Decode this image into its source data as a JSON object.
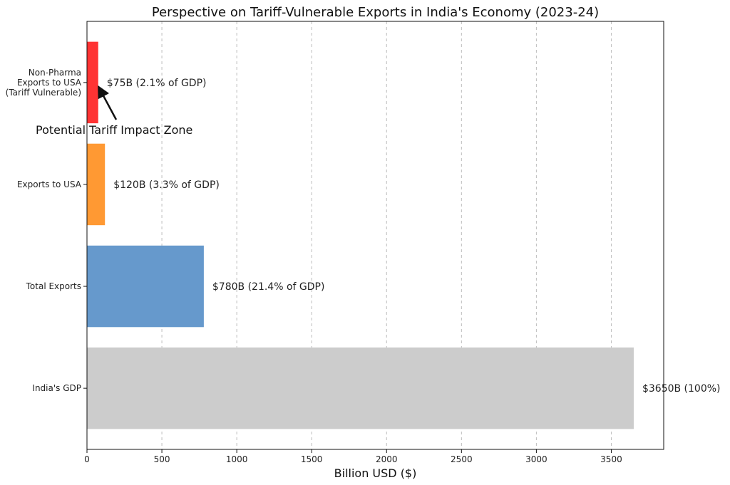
{
  "chart_data": {
    "type": "bar",
    "orientation": "horizontal",
    "title": "Perspective on Tariff-Vulnerable Exports in India's Economy (2023-24)",
    "xlabel": "Billion USD ($)",
    "ylabel": "",
    "xlim": [
      0,
      3850
    ],
    "x_ticks": [
      0,
      500,
      1000,
      1500,
      2000,
      2500,
      3000,
      3500
    ],
    "grid": "vertical dashed",
    "categories": [
      "India's GDP",
      "Total Exports",
      "Exports to USA",
      "Non-Pharma Exports to USA (Tariff Vulnerable)"
    ],
    "category_lines": [
      [
        "India's GDP"
      ],
      [
        "Total Exports"
      ],
      [
        "Exports to USA"
      ],
      [
        "Non-Pharma",
        "Exports to USA",
        "(Tariff Vulnerable)"
      ]
    ],
    "values": [
      3650,
      780,
      120,
      75
    ],
    "data_labels": [
      "$3650B (100%)",
      "$780B (21.4% of GDP)",
      "$120B (3.3% of GDP)",
      "$75B (2.1% of GDP)"
    ],
    "colors": [
      "#cccccc",
      "#6699cc",
      "#ff9933",
      "#ff3333"
    ],
    "annotation": {
      "text": "Potential Tariff Impact Zone",
      "target_category": "Non-Pharma Exports to USA (Tariff Vulnerable)",
      "target_value": 75,
      "arrow": true
    }
  }
}
